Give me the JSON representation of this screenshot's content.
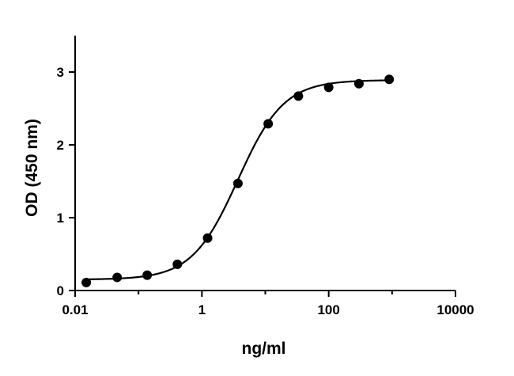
{
  "chart_data": {
    "type": "scatter",
    "title": "",
    "xlabel": "ng/ml",
    "ylabel": "OD (450 nm)",
    "x_scale": "log",
    "xlim": [
      0.01,
      10000
    ],
    "ylim": [
      0,
      3.5
    ],
    "x_ticks": [
      0.01,
      1,
      100,
      10000
    ],
    "x_tick_labels": [
      "0.01",
      "1",
      "100",
      "10000"
    ],
    "y_ticks": [
      0,
      1,
      2,
      3
    ],
    "y_tick_labels": [
      "0",
      "1",
      "2",
      "3"
    ],
    "grid": false,
    "legend": "none",
    "colors": {
      "points": "#000000",
      "line": "#000000"
    },
    "series": [
      {
        "x": [
          0.015,
          0.046,
          0.137,
          0.41,
          1.23,
          3.7,
          11.1,
          33.3,
          100,
          300,
          900
        ],
        "y": [
          0.11,
          0.18,
          0.21,
          0.36,
          0.72,
          1.47,
          2.29,
          2.67,
          2.79,
          2.84,
          2.9
        ]
      }
    ],
    "fit_curve": {
      "model": "4PL",
      "bottom": 0.15,
      "top": 2.89,
      "ec50": 3.7,
      "hill": 1.2
    }
  }
}
